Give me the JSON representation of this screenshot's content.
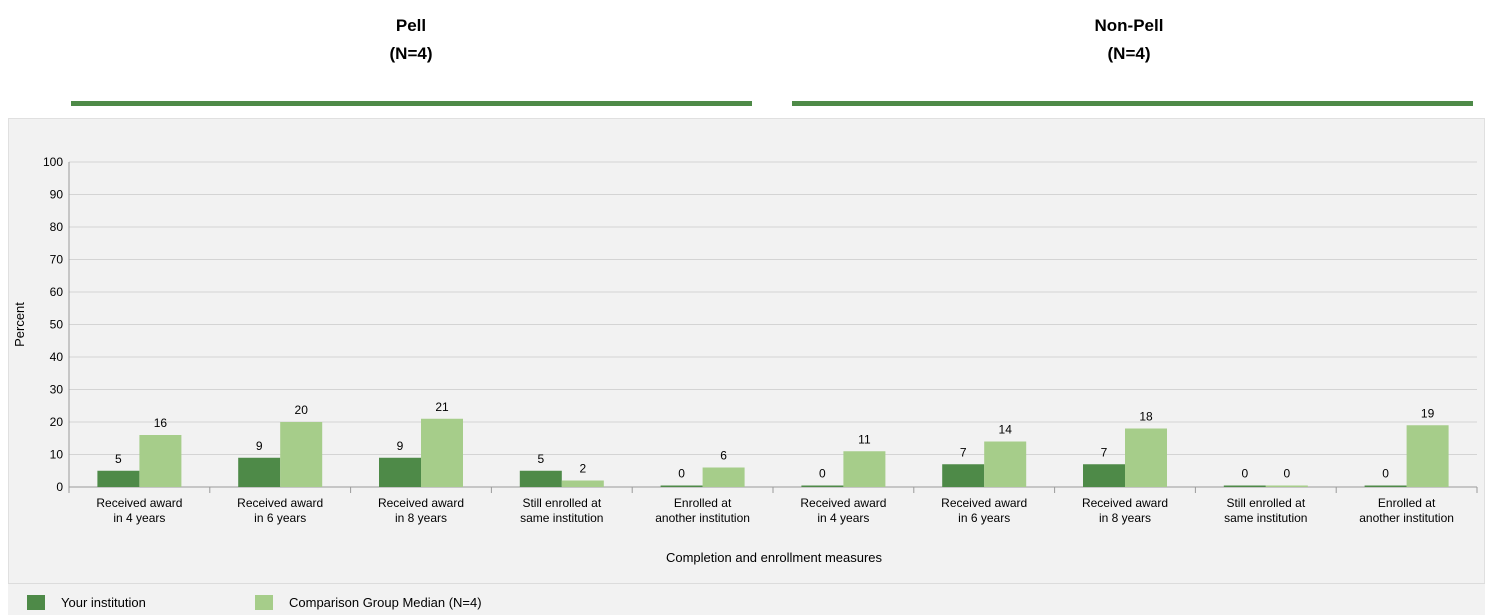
{
  "groups": [
    {
      "title": "Pell",
      "subtitle": "(N=4)"
    },
    {
      "title": "Non-Pell",
      "subtitle": "(N=4)"
    }
  ],
  "colors": {
    "your_institution": "#4e8a48",
    "comparison": "#a6cd8a",
    "rule": "#4e8a48",
    "grid": "#d4d4d4",
    "panel": "#f2f2f2"
  },
  "legend": {
    "items": [
      {
        "label": "Your institution",
        "color": "#4e8a48"
      },
      {
        "label": "Comparison Group Median (N=4)",
        "color": "#a6cd8a"
      }
    ]
  },
  "chart_data": {
    "type": "bar",
    "title": "",
    "xlabel": "Completion and enrollment measures",
    "ylabel": "Percent",
    "ylim": [
      0,
      100
    ],
    "yticks": [
      0,
      10,
      20,
      30,
      40,
      50,
      60,
      70,
      80,
      90,
      100
    ],
    "grid": true,
    "legend_position": "bottom",
    "categories": [
      [
        "Received award",
        "in 4 years"
      ],
      [
        "Received award",
        "in 6 years"
      ],
      [
        "Received award",
        "in 8 years"
      ],
      [
        "Still enrolled at",
        "same institution"
      ],
      [
        "Enrolled at",
        "another institution"
      ],
      [
        "Received award",
        "in 4 years"
      ],
      [
        "Received award",
        "in 6 years"
      ],
      [
        "Received award",
        "in 8 years"
      ],
      [
        "Still enrolled at",
        "same institution"
      ],
      [
        "Enrolled at",
        "another institution"
      ]
    ],
    "series": [
      {
        "name": "Your institution",
        "values": [
          5,
          9,
          9,
          5,
          0,
          0,
          7,
          7,
          0,
          0
        ]
      },
      {
        "name": "Comparison Group Median (N=4)",
        "values": [
          16,
          20,
          21,
          2,
          6,
          11,
          14,
          18,
          0,
          19
        ]
      }
    ]
  }
}
